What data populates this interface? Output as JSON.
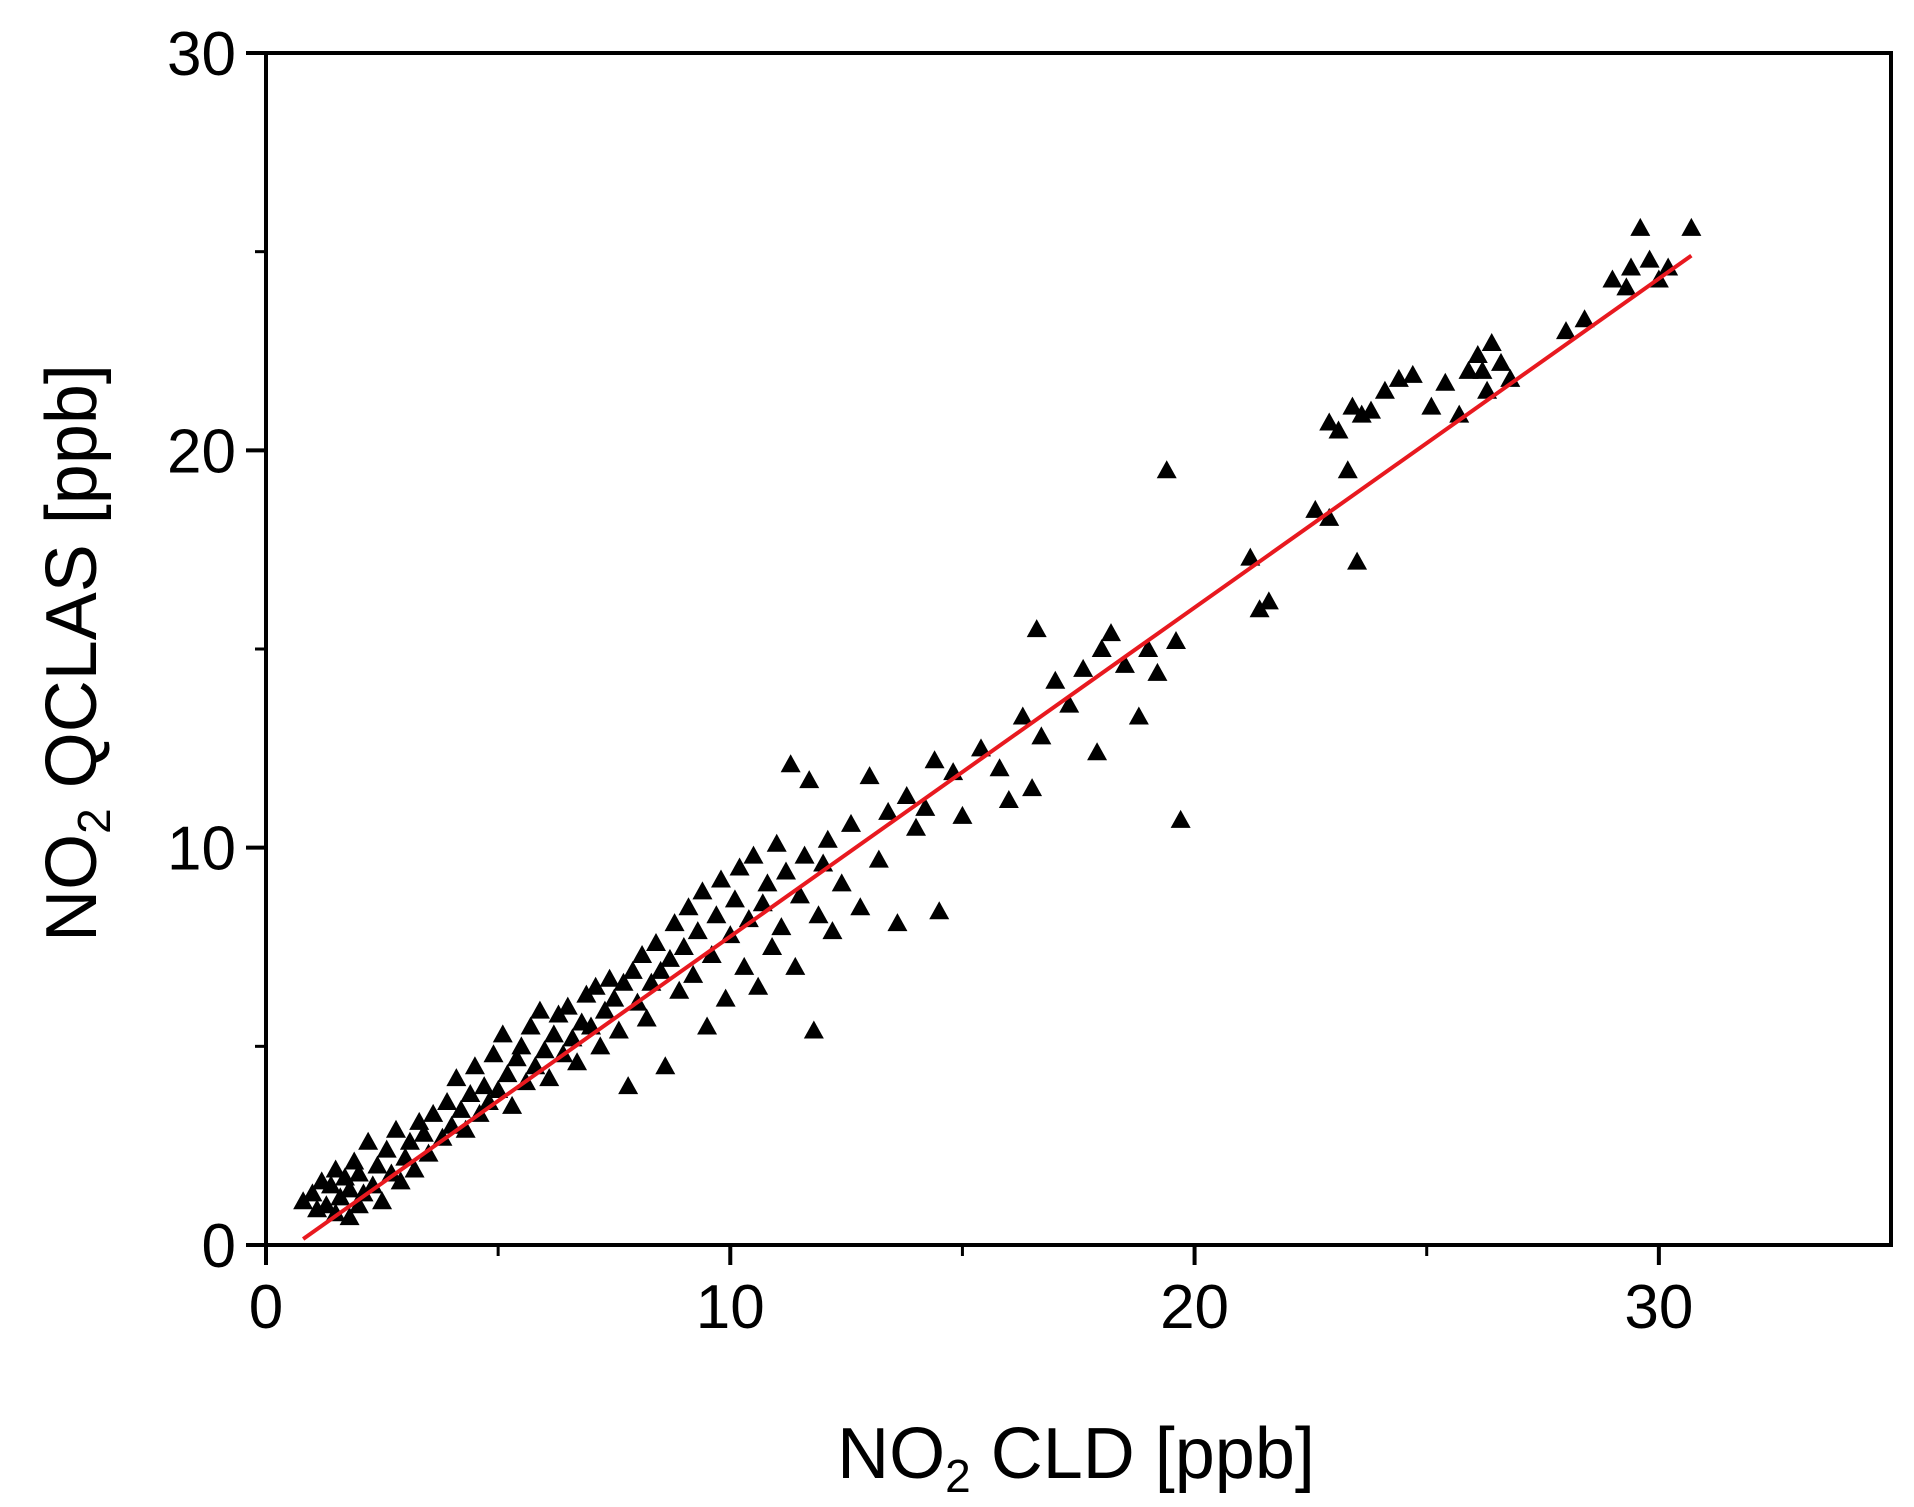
{
  "chart_data": {
    "type": "scatter",
    "x_label": {
      "base": "NO",
      "sub": "2",
      "rest": " CLD [ppb]"
    },
    "y_label": {
      "base": "NO",
      "sub": "2",
      "rest": " QCLAS [ppb]"
    },
    "xlim": [
      0,
      35
    ],
    "ylim": [
      0,
      30
    ],
    "xticks": [
      0,
      10,
      20,
      30
    ],
    "yticks": [
      0,
      10,
      20,
      30
    ],
    "tick_labels_x": [
      "0",
      "10",
      "20",
      "30"
    ],
    "tick_labels_y": [
      "0",
      "10",
      "20",
      "30"
    ],
    "grid": false,
    "colors": {
      "points": "#000000",
      "fit_line": "#e8191f",
      "axes": "#000000"
    },
    "marker": "triangle",
    "series": [
      {
        "points": [
          [
            0.8,
            1.1
          ],
          [
            1.0,
            1.3
          ],
          [
            1.1,
            0.9
          ],
          [
            1.2,
            1.6
          ],
          [
            1.3,
            1.0
          ],
          [
            1.4,
            1.5
          ],
          [
            1.5,
            0.8
          ],
          [
            1.5,
            1.9
          ],
          [
            1.6,
            1.2
          ],
          [
            1.7,
            1.7
          ],
          [
            1.8,
            0.7
          ],
          [
            1.8,
            1.4
          ],
          [
            1.9,
            2.1
          ],
          [
            2.0,
            1.0
          ],
          [
            2.0,
            1.8
          ],
          [
            2.1,
            1.3
          ],
          [
            2.2,
            2.6
          ],
          [
            2.3,
            1.5
          ],
          [
            2.4,
            2.0
          ],
          [
            2.5,
            1.1
          ],
          [
            2.6,
            2.4
          ],
          [
            2.7,
            1.8
          ],
          [
            2.8,
            2.9
          ],
          [
            2.9,
            1.6
          ],
          [
            3.0,
            2.2
          ],
          [
            3.1,
            2.6
          ],
          [
            3.2,
            1.9
          ],
          [
            3.3,
            3.1
          ],
          [
            3.4,
            2.8
          ],
          [
            3.5,
            2.3
          ],
          [
            3.6,
            3.3
          ],
          [
            3.8,
            2.7
          ],
          [
            3.9,
            3.6
          ],
          [
            4.0,
            3.0
          ],
          [
            4.1,
            4.2
          ],
          [
            4.2,
            3.4
          ],
          [
            4.3,
            2.9
          ],
          [
            4.4,
            3.8
          ],
          [
            4.5,
            4.5
          ],
          [
            4.6,
            3.3
          ],
          [
            4.7,
            4.0
          ],
          [
            4.8,
            3.6
          ],
          [
            4.9,
            4.8
          ],
          [
            5.0,
            3.9
          ],
          [
            5.1,
            5.3
          ],
          [
            5.2,
            4.3
          ],
          [
            5.3,
            3.5
          ],
          [
            5.4,
            4.7
          ],
          [
            5.5,
            5.0
          ],
          [
            5.6,
            4.1
          ],
          [
            5.7,
            5.5
          ],
          [
            5.8,
            4.5
          ],
          [
            5.9,
            5.9
          ],
          [
            6.0,
            4.9
          ],
          [
            6.1,
            4.2
          ],
          [
            6.2,
            5.3
          ],
          [
            6.3,
            5.8
          ],
          [
            6.4,
            4.8
          ],
          [
            6.5,
            6.0
          ],
          [
            6.6,
            5.2
          ],
          [
            6.7,
            4.6
          ],
          [
            6.8,
            5.6
          ],
          [
            6.9,
            6.3
          ],
          [
            7.0,
            5.5
          ],
          [
            7.1,
            6.5
          ],
          [
            7.2,
            5.0
          ],
          [
            7.3,
            5.9
          ],
          [
            7.4,
            6.7
          ],
          [
            7.5,
            6.2
          ],
          [
            7.6,
            5.4
          ],
          [
            7.7,
            6.6
          ],
          [
            7.8,
            4.0
          ],
          [
            7.9,
            6.9
          ],
          [
            8.0,
            6.1
          ],
          [
            8.1,
            7.3
          ],
          [
            8.2,
            5.7
          ],
          [
            8.3,
            6.6
          ],
          [
            8.4,
            7.6
          ],
          [
            8.5,
            6.9
          ],
          [
            8.6,
            4.5
          ],
          [
            8.7,
            7.2
          ],
          [
            8.8,
            8.1
          ],
          [
            8.9,
            6.4
          ],
          [
            9.0,
            7.5
          ],
          [
            9.1,
            8.5
          ],
          [
            9.2,
            6.8
          ],
          [
            9.3,
            7.9
          ],
          [
            9.4,
            8.9
          ],
          [
            9.5,
            5.5
          ],
          [
            9.6,
            7.3
          ],
          [
            9.7,
            8.3
          ],
          [
            9.8,
            9.2
          ],
          [
            9.9,
            6.2
          ],
          [
            10.0,
            7.8
          ],
          [
            10.1,
            8.7
          ],
          [
            10.2,
            9.5
          ],
          [
            10.3,
            7.0
          ],
          [
            10.4,
            8.2
          ],
          [
            10.5,
            9.8
          ],
          [
            10.6,
            6.5
          ],
          [
            10.7,
            8.6
          ],
          [
            10.8,
            9.1
          ],
          [
            10.9,
            7.5
          ],
          [
            11.0,
            10.1
          ],
          [
            11.1,
            8.0
          ],
          [
            11.2,
            9.4
          ],
          [
            11.3,
            12.1
          ],
          [
            11.4,
            7.0
          ],
          [
            11.5,
            8.8
          ],
          [
            11.6,
            9.8
          ],
          [
            11.7,
            11.7
          ],
          [
            11.8,
            5.4
          ],
          [
            11.9,
            8.3
          ],
          [
            12.0,
            9.6
          ],
          [
            12.1,
            10.2
          ],
          [
            12.2,
            7.9
          ],
          [
            12.4,
            9.1
          ],
          [
            12.6,
            10.6
          ],
          [
            12.8,
            8.5
          ],
          [
            13.0,
            11.8
          ],
          [
            13.2,
            9.7
          ],
          [
            13.4,
            10.9
          ],
          [
            13.6,
            8.1
          ],
          [
            13.8,
            11.3
          ],
          [
            14.0,
            10.5
          ],
          [
            14.2,
            11.0
          ],
          [
            14.4,
            12.2
          ],
          [
            14.5,
            8.4
          ],
          [
            14.8,
            11.9
          ],
          [
            15.0,
            10.8
          ],
          [
            15.4,
            12.5
          ],
          [
            15.8,
            12.0
          ],
          [
            16.0,
            11.2
          ],
          [
            16.3,
            13.3
          ],
          [
            16.5,
            11.5
          ],
          [
            16.7,
            12.8
          ],
          [
            17.0,
            14.2
          ],
          [
            17.3,
            13.6
          ],
          [
            17.6,
            14.5
          ],
          [
            17.9,
            12.4
          ],
          [
            18.2,
            15.4
          ],
          [
            18.5,
            14.6
          ],
          [
            18.8,
            13.3
          ],
          [
            19.0,
            15.0
          ],
          [
            19.2,
            14.4
          ],
          [
            19.4,
            19.5
          ],
          [
            19.6,
            15.2
          ],
          [
            19.7,
            10.7
          ],
          [
            16.6,
            15.5
          ],
          [
            18.0,
            15.0
          ],
          [
            21.2,
            17.3
          ],
          [
            21.4,
            16.0
          ],
          [
            21.6,
            16.2
          ],
          [
            22.6,
            18.5
          ],
          [
            22.9,
            18.3
          ],
          [
            22.9,
            20.7
          ],
          [
            23.1,
            20.5
          ],
          [
            23.3,
            19.5
          ],
          [
            23.4,
            21.1
          ],
          [
            23.5,
            17.2
          ],
          [
            23.6,
            20.9
          ],
          [
            23.8,
            21.0
          ],
          [
            24.1,
            21.5
          ],
          [
            24.4,
            21.8
          ],
          [
            24.7,
            21.9
          ],
          [
            25.1,
            21.1
          ],
          [
            25.4,
            21.7
          ],
          [
            25.7,
            20.9
          ],
          [
            25.9,
            22.0
          ],
          [
            26.1,
            22.4
          ],
          [
            26.2,
            22.0
          ],
          [
            26.3,
            21.5
          ],
          [
            26.4,
            22.7
          ],
          [
            26.6,
            22.2
          ],
          [
            26.8,
            21.8
          ],
          [
            28.0,
            23.0
          ],
          [
            28.4,
            23.3
          ],
          [
            29.0,
            24.3
          ],
          [
            29.3,
            24.1
          ],
          [
            29.4,
            24.6
          ],
          [
            29.6,
            25.6
          ],
          [
            29.8,
            24.8
          ],
          [
            30.0,
            24.3
          ],
          [
            30.2,
            24.6
          ],
          [
            30.7,
            25.6
          ]
        ]
      }
    ],
    "fit_line": {
      "x": [
        0.8,
        30.7
      ],
      "y": [
        0.15,
        24.9
      ]
    }
  }
}
